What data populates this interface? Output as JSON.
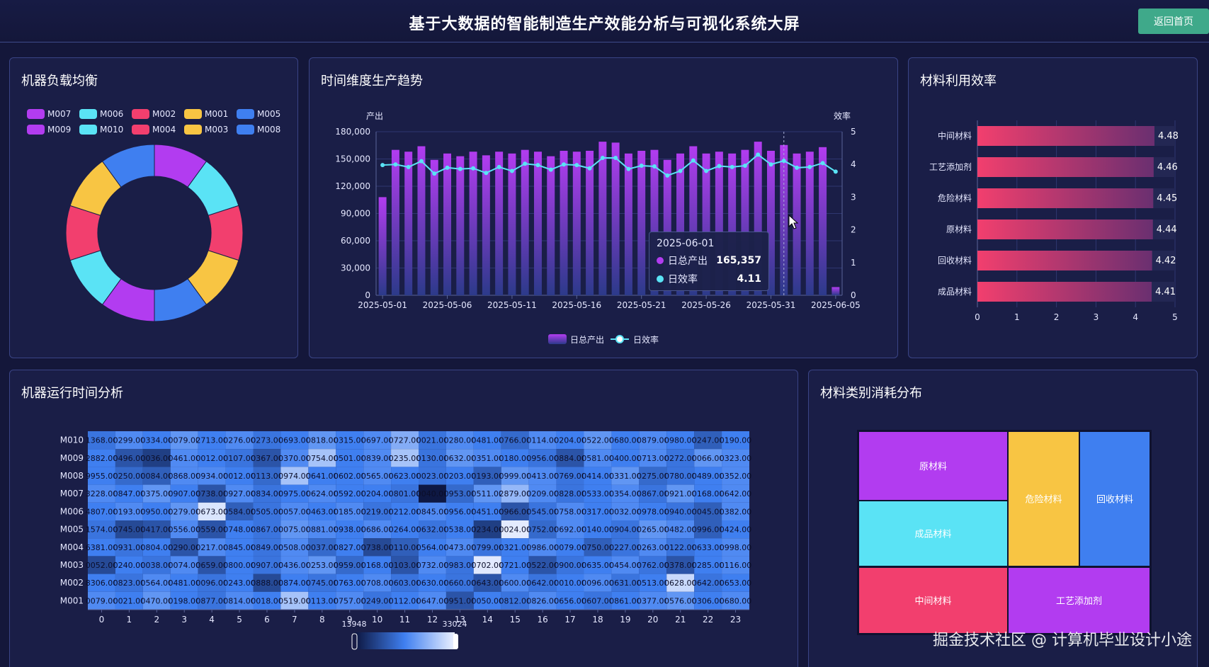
{
  "header": {
    "title": "基于大数据的智能制造生产效能分析与可视化系统大屏",
    "back_label": "返回首页"
  },
  "panels": {
    "machine_load": "机器负载均衡",
    "trend": "时间维度生产趋势",
    "material_eff": "材料利用效率",
    "runtime": "机器运行时间分析",
    "material_cat": "材料类别消耗分布"
  },
  "machine_load": {
    "legend": [
      {
        "name": "M007",
        "color": "#b23cf0"
      },
      {
        "name": "M006",
        "color": "#5ae3f5"
      },
      {
        "name": "M002",
        "color": "#f23f6e"
      },
      {
        "name": "M001",
        "color": "#f8c543"
      },
      {
        "name": "M005",
        "color": "#3f7ff0"
      },
      {
        "name": "M009",
        "color": "#b23cf0"
      },
      {
        "name": "M010",
        "color": "#5ae3f5"
      },
      {
        "name": "M004",
        "color": "#f23f6e"
      },
      {
        "name": "M003",
        "color": "#f8c543"
      },
      {
        "name": "M008",
        "color": "#3f7ff0"
      }
    ],
    "chart_data": {
      "type": "pie",
      "categories": [
        "M007",
        "M006",
        "M002",
        "M001",
        "M005",
        "M009",
        "M010",
        "M004",
        "M003",
        "M008"
      ],
      "values": [
        10,
        10,
        10,
        10,
        10,
        10,
        10,
        10,
        10,
        10
      ]
    }
  },
  "trend": {
    "left_axis_name": "产出",
    "right_axis_name": "效率",
    "legend": [
      {
        "name": "日总产出"
      },
      {
        "name": "日效率"
      }
    ],
    "tooltip": {
      "date": "2025-06-01",
      "output_label": "日总产出",
      "output_value": "165,357",
      "eff_label": "日效率",
      "eff_value": "4.11"
    },
    "x_ticks": [
      "2025-05-01",
      "2025-05-06",
      "2025-05-11",
      "2025-05-16",
      "2025-05-21",
      "2025-05-26",
      "2025-05-31",
      "2025-06-05"
    ],
    "y_ticks": [
      "0",
      "30,000",
      "60,000",
      "90,000",
      "120,000",
      "150,000",
      "180,000"
    ],
    "y2_ticks": [
      "0",
      "1",
      "2",
      "3",
      "4",
      "5"
    ],
    "chart_data": {
      "type": "bar",
      "x": [
        "2025-05-01",
        "2025-05-02",
        "2025-05-03",
        "2025-05-04",
        "2025-05-05",
        "2025-05-06",
        "2025-05-07",
        "2025-05-08",
        "2025-05-09",
        "2025-05-10",
        "2025-05-11",
        "2025-05-12",
        "2025-05-13",
        "2025-05-14",
        "2025-05-15",
        "2025-05-16",
        "2025-05-17",
        "2025-05-18",
        "2025-05-19",
        "2025-05-20",
        "2025-05-21",
        "2025-05-22",
        "2025-05-23",
        "2025-05-24",
        "2025-05-25",
        "2025-05-26",
        "2025-05-27",
        "2025-05-28",
        "2025-05-29",
        "2025-05-30",
        "2025-05-31",
        "2025-06-01",
        "2025-06-02",
        "2025-06-03",
        "2025-06-04",
        "2025-06-05"
      ],
      "series": [
        {
          "name": "日总产出",
          "type": "bar",
          "values": [
            108000,
            160000,
            158000,
            164000,
            149000,
            156000,
            153000,
            158000,
            154000,
            158000,
            156000,
            160000,
            158000,
            153000,
            159000,
            158000,
            159000,
            169000,
            168000,
            156000,
            159000,
            160000,
            149000,
            156000,
            164000,
            156000,
            158000,
            156000,
            160000,
            169000,
            159000,
            165357,
            156000,
            158000,
            163000,
            9000
          ]
        },
        {
          "name": "日效率",
          "type": "line",
          "values": [
            3.98,
            4.0,
            3.92,
            4.1,
            3.72,
            3.9,
            3.86,
            3.88,
            3.74,
            3.92,
            3.8,
            4.02,
            3.98,
            3.84,
            4.0,
            3.98,
            3.88,
            4.2,
            4.2,
            3.86,
            3.96,
            3.94,
            3.66,
            3.8,
            4.12,
            3.8,
            3.95,
            3.92,
            3.96,
            4.3,
            4.0,
            4.11,
            3.9,
            3.92,
            4.04,
            3.78
          ]
        }
      ],
      "ylim": [
        0,
        180000
      ],
      "y2lim": [
        0,
        5
      ]
    }
  },
  "material_eff": {
    "chart_data": {
      "type": "bar",
      "categories": [
        "中间材料",
        "工艺添加剂",
        "危险材料",
        "原材料",
        "回收材料",
        "成品材料"
      ],
      "values": [
        4.48,
        4.46,
        4.45,
        4.44,
        4.42,
        4.41
      ],
      "xlim": [
        0,
        5
      ]
    },
    "x_ticks": [
      "0",
      "1",
      "2",
      "3",
      "4",
      "5"
    ]
  },
  "runtime": {
    "y_labels": [
      "M010",
      "M009",
      "M008",
      "M007",
      "M006",
      "M005",
      "M004",
      "M003",
      "M002",
      "M001"
    ],
    "x_labels": [
      "0",
      "1",
      "2",
      "3",
      "4",
      "5",
      "6",
      "7",
      "8",
      "9",
      "10",
      "11",
      "12",
      "13",
      "14",
      "15",
      "16",
      "17",
      "18",
      "19",
      "20",
      "21",
      "22",
      "23"
    ],
    "visual_map": {
      "min": "13948",
      "max": "33024"
    },
    "chart_data": {
      "type": "heatmap",
      "rows": [
        "M010",
        "M009",
        "M008",
        "M007",
        "M006",
        "M005",
        "M004",
        "M003",
        "M002",
        "M001"
      ],
      "cols": [
        "0",
        "1",
        "2",
        "3",
        "4",
        "5",
        "6",
        "7",
        "8",
        "9",
        "10",
        "11",
        "12",
        "13",
        "14",
        "15",
        "16",
        "17",
        "18",
        "19",
        "20",
        "21",
        "22",
        "23"
      ],
      "cell_labels": [
        [
          "1368.00",
          "0299.00",
          "0334.00",
          "0079.00",
          "2713.00",
          "0276.00",
          "0273.00",
          "0693.00",
          "0818.00",
          "0315.00",
          "0697.00",
          "0727.00",
          "0021.00",
          "0280.00",
          "0481.00",
          "0766.00",
          "0114.00",
          "0204.00",
          "0522.00",
          "0680.00",
          "0879.00",
          "0980.00",
          "0247.00",
          "0190.00"
        ],
        [
          "2882.00",
          "0496.00",
          "0036.00",
          "0461.00",
          "0012.00",
          "0107.00",
          "0367.00",
          "0370.00",
          "0754.00",
          "0501.00",
          "0839.00",
          "0235.00",
          "0130.00",
          "0632.00",
          "0351.00",
          "0180.00",
          "0956.00",
          "0884.00",
          "0581.00",
          "0400.00",
          "0713.00",
          "0272.00",
          "0066.00",
          "0323.00"
        ],
        [
          "9955.00",
          "0250.00",
          "0084.00",
          "0868.00",
          "0934.00",
          "0012.00",
          "0113.00",
          "0974.00",
          "0641.00",
          "0602.00",
          "0565.00",
          "0623.00",
          "0023.00",
          "0203.00",
          "0193.00",
          "0999.00",
          "0413.00",
          "0769.00",
          "0414.00",
          "0331.00",
          "0275.00",
          "0780.00",
          "0489.00",
          "0352.00"
        ],
        [
          "3228.00",
          "0847.00",
          "0375.00",
          "0907.00",
          "0738.00",
          "0927.00",
          "0834.00",
          "0975.00",
          "0624.00",
          "0592.00",
          "0204.00",
          "0801.00",
          "0040.00",
          "0953.00",
          "0511.00",
          "2879.00",
          "0209.00",
          "0828.00",
          "0533.00",
          "0354.00",
          "0867.00",
          "0921.00",
          "0168.00",
          "0642.00"
        ],
        [
          "4807.00",
          "0193.00",
          "0950.00",
          "0279.00",
          "0673.00",
          "0584.00",
          "0505.00",
          "0057.00",
          "0463.00",
          "0185.00",
          "0219.00",
          "0212.00",
          "0845.00",
          "0956.00",
          "0451.00",
          "0966.00",
          "0545.00",
          "0758.00",
          "0317.00",
          "0032.00",
          "0978.00",
          "0940.00",
          "0045.00",
          "0382.00"
        ],
        [
          "1574.00",
          "0745.00",
          "0417.00",
          "0556.00",
          "0559.00",
          "0748.00",
          "0867.00",
          "0075.00",
          "0881.00",
          "0938.00",
          "0686.00",
          "0264.00",
          "0632.00",
          "0538.00",
          "0234.00",
          "0024.00",
          "0752.00",
          "0692.00",
          "0140.00",
          "0904.00",
          "0265.00",
          "0482.00",
          "0996.00",
          "0424.00"
        ],
        [
          "6381.00",
          "0931.00",
          "0804.00",
          "0290.00",
          "0217.00",
          "0845.00",
          "0849.00",
          "0508.00",
          "0037.00",
          "0827.00",
          "0738.00",
          "0110.00",
          "0564.00",
          "0473.00",
          "0799.00",
          "0321.00",
          "0986.00",
          "0079.00",
          "0750.00",
          "0227.00",
          "0263.00",
          "0122.00",
          "0633.00",
          "0998.00"
        ],
        [
          "0052.00",
          "0240.00",
          "0038.00",
          "0074.00",
          "0659.00",
          "0800.00",
          "0907.00",
          "0436.00",
          "0253.00",
          "0959.00",
          "0168.00",
          "0103.00",
          "0732.00",
          "0983.00",
          "0702.00",
          "0721.00",
          "0522.00",
          "0900.00",
          "0635.00",
          "0454.00",
          "0762.00",
          "0378.00",
          "0285.00",
          "0116.00"
        ],
        [
          "8306.00",
          "0823.00",
          "0564.00",
          "0481.00",
          "0096.00",
          "0243.00",
          "0888.00",
          "0874.00",
          "0745.00",
          "0763.00",
          "0708.00",
          "0603.00",
          "0630.00",
          "0660.00",
          "0643.00",
          "0600.00",
          "0642.00",
          "0010.00",
          "0096.00",
          "0631.00",
          "0513.00",
          "0628.00",
          "0642.00",
          "0653.00"
        ],
        [
          "0079.00",
          "0021.00",
          "0470.00",
          "0198.00",
          "0877.00",
          "0814.00",
          "0018.00",
          "0519.00",
          "0113.00",
          "0757.00",
          "0249.00",
          "0112.00",
          "0647.00",
          "0951.00",
          "0050.00",
          "0812.00",
          "0826.00",
          "0656.00",
          "0607.00",
          "0861.00",
          "0377.00",
          "0576.00",
          "0306.00",
          "0680.00"
        ]
      ],
      "levels": [
        [
          0.45,
          0.55,
          0.5,
          0.6,
          0.5,
          0.55,
          0.45,
          0.5,
          0.6,
          0.5,
          0.55,
          0.7,
          0.45,
          0.55,
          0.5,
          0.4,
          0.55,
          0.5,
          0.6,
          0.5,
          0.55,
          0.5,
          0.35,
          0.5
        ],
        [
          0.5,
          0.3,
          0.2,
          0.55,
          0.5,
          0.45,
          0.3,
          0.55,
          0.8,
          0.5,
          0.55,
          0.8,
          0.45,
          0.6,
          0.55,
          0.5,
          0.45,
          0.3,
          0.55,
          0.5,
          0.55,
          0.45,
          0.6,
          0.55
        ],
        [
          0.5,
          0.4,
          0.35,
          0.55,
          0.55,
          0.5,
          0.4,
          0.8,
          0.5,
          0.5,
          0.55,
          0.5,
          0.45,
          0.5,
          0.35,
          0.6,
          0.55,
          0.45,
          0.5,
          0.6,
          0.4,
          0.45,
          0.5,
          0.55
        ],
        [
          0.55,
          0.5,
          0.6,
          0.5,
          0.3,
          0.55,
          0.45,
          0.5,
          0.55,
          0.5,
          0.5,
          0.45,
          0.02,
          0.4,
          0.6,
          0.75,
          0.55,
          0.45,
          0.5,
          0.55,
          0.45,
          0.6,
          0.5,
          0.55
        ],
        [
          0.5,
          0.55,
          0.5,
          0.6,
          0.95,
          0.35,
          0.45,
          0.55,
          0.5,
          0.55,
          0.45,
          0.5,
          0.55,
          0.5,
          0.5,
          0.3,
          0.45,
          0.55,
          0.5,
          0.55,
          0.5,
          0.45,
          0.35,
          0.55
        ],
        [
          0.45,
          0.25,
          0.3,
          0.55,
          0.3,
          0.5,
          0.45,
          0.6,
          0.55,
          0.5,
          0.55,
          0.5,
          0.45,
          0.5,
          0.2,
          0.98,
          0.4,
          0.55,
          0.5,
          0.45,
          0.6,
          0.55,
          0.35,
          0.5
        ],
        [
          0.5,
          0.45,
          0.5,
          0.3,
          0.55,
          0.5,
          0.45,
          0.55,
          0.4,
          0.5,
          0.25,
          0.35,
          0.5,
          0.55,
          0.45,
          0.5,
          0.55,
          0.5,
          0.35,
          0.45,
          0.55,
          0.45,
          0.5,
          0.55
        ],
        [
          0.25,
          0.5,
          0.45,
          0.55,
          0.3,
          0.5,
          0.45,
          0.55,
          0.6,
          0.4,
          0.5,
          0.3,
          0.55,
          0.45,
          0.97,
          0.5,
          0.3,
          0.45,
          0.5,
          0.55,
          0.45,
          0.3,
          0.5,
          0.55
        ],
        [
          0.5,
          0.45,
          0.55,
          0.5,
          0.45,
          0.5,
          0.25,
          0.5,
          0.45,
          0.5,
          0.55,
          0.45,
          0.5,
          0.45,
          0.3,
          0.55,
          0.45,
          0.5,
          0.55,
          0.45,
          0.5,
          0.9,
          0.45,
          0.5
        ],
        [
          0.55,
          0.5,
          0.6,
          0.5,
          0.45,
          0.55,
          0.5,
          0.8,
          0.5,
          0.55,
          0.45,
          0.5,
          0.55,
          0.3,
          0.5,
          0.45,
          0.55,
          0.5,
          0.45,
          0.5,
          0.55,
          0.6,
          0.5,
          0.55
        ]
      ]
    }
  },
  "material_cat": {
    "chart_data": {
      "type": "treemap",
      "categories": [
        "原材料",
        "成品材料",
        "中间材料",
        "危险材料",
        "回收材料",
        "工艺添加剂"
      ],
      "colors": [
        "#b23cf0",
        "#5ae3f5",
        "#f23f6e",
        "#f8c543",
        "#3f7ff0",
        "#b23cf0"
      ]
    }
  },
  "watermark": "掘金技术社区 @ 计算机毕业设计小途"
}
